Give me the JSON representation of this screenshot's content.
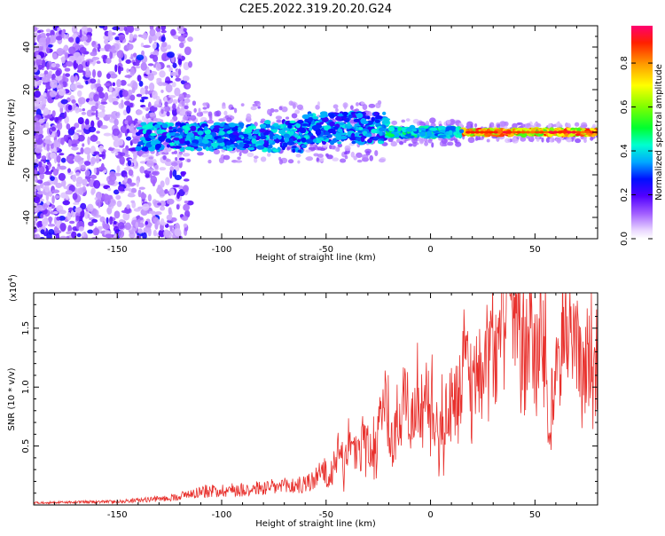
{
  "title": "C2E5.2022.319.20.20.G24",
  "colorbar": {
    "label": "Normalized spectral amplitude",
    "ticks": [
      "0.0",
      "0.2",
      "0.4",
      "0.6",
      "0.8"
    ],
    "ticks_values": [
      0.0,
      0.2,
      0.4,
      0.6,
      0.8
    ],
    "range": [
      0,
      0.97
    ]
  },
  "chart_data": [
    {
      "type": "heatmap",
      "xlabel": "Height of straight line (km)",
      "ylabel": "Frequency (Hz)",
      "xlim": [
        -190,
        80
      ],
      "ylim": [
        -50,
        50
      ],
      "xticks": [
        -150,
        -100,
        -50,
        0,
        50
      ],
      "xtick_labels": [
        "-150",
        "-100",
        "-50",
        "0",
        "50"
      ],
      "yticks": [
        -40,
        -20,
        0,
        20,
        40
      ],
      "ytick_labels": [
        "-40",
        "-20",
        "0",
        "20",
        "40"
      ],
      "description_regions": [
        {
          "x_range": [
            -190,
            -125
          ],
          "freq_spread": 50,
          "amplitude": 0.15
        },
        {
          "x_range": [
            -140,
            -20
          ],
          "freq_spread": 10,
          "amplitude": 0.35
        },
        {
          "x_range": [
            -20,
            15
          ],
          "freq_spread": 3,
          "amplitude": 0.45
        },
        {
          "x_range": [
            15,
            80
          ],
          "freq_spread": 2,
          "amplitude": 0.9
        }
      ]
    },
    {
      "type": "line",
      "xlabel": "Height of straight line (km)",
      "ylabel": "SNR (10 * v/v)",
      "scale_label": "(x10",
      "scale_exp": "4",
      "scale_close": ")",
      "xlim": [
        -190,
        80
      ],
      "ylim": [
        0,
        1.8
      ],
      "xticks": [
        -150,
        -100,
        -50,
        0,
        50
      ],
      "xtick_labels": [
        "-150",
        "-100",
        "-50",
        "0",
        "50"
      ],
      "yticks": [
        0.5,
        1.0,
        1.5
      ],
      "ytick_labels": [
        "0.5",
        "1.0",
        "1.5"
      ],
      "color": "#e8302c",
      "envelope": [
        {
          "x": -190,
          "y": 0.02
        },
        {
          "x": -150,
          "y": 0.03
        },
        {
          "x": -125,
          "y": 0.06
        },
        {
          "x": -110,
          "y": 0.12
        },
        {
          "x": -80,
          "y": 0.15
        },
        {
          "x": -60,
          "y": 0.18
        },
        {
          "x": -45,
          "y": 0.35
        },
        {
          "x": -35,
          "y": 0.55
        },
        {
          "x": -25,
          "y": 0.75
        },
        {
          "x": -15,
          "y": 0.85
        },
        {
          "x": -5,
          "y": 0.9
        },
        {
          "x": 5,
          "y": 1.0
        },
        {
          "x": 20,
          "y": 1.1
        },
        {
          "x": 35,
          "y": 1.3
        },
        {
          "x": 38,
          "y": 1.75
        },
        {
          "x": 50,
          "y": 1.3
        },
        {
          "x": 60,
          "y": 1.25
        },
        {
          "x": 70,
          "y": 1.3
        },
        {
          "x": 80,
          "y": 1.5
        }
      ]
    }
  ]
}
